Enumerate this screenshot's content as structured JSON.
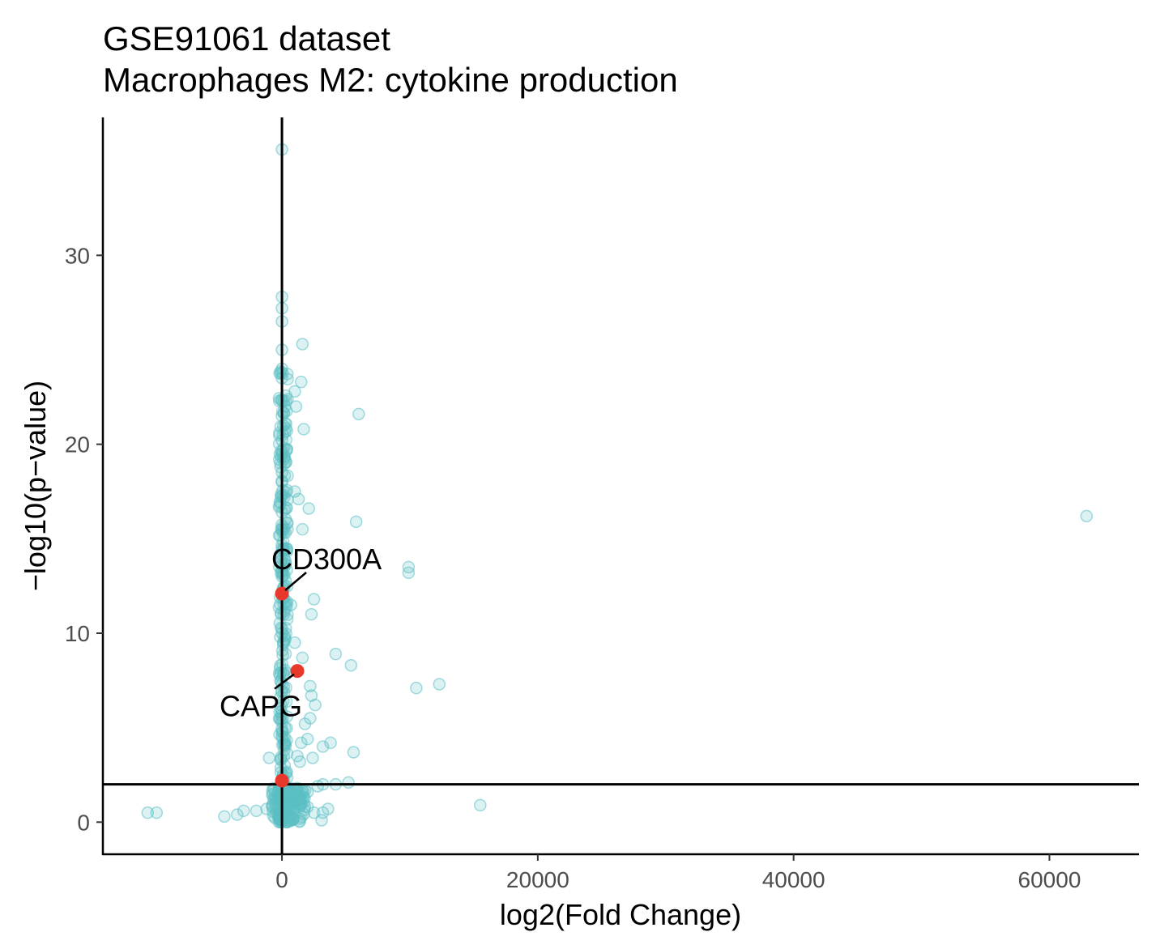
{
  "chart_data": {
    "type": "scatter",
    "title": "GSE91061 dataset",
    "subtitle": "Macrophages M2: cytokine production",
    "xlabel": "log2(Fold Change)",
    "ylabel": "−log10(p−value)",
    "xlim": [
      -14000,
      67000
    ],
    "ylim": [
      -1.7,
      37.3
    ],
    "x_ticks": [
      0,
      20000,
      40000,
      60000
    ],
    "y_ticks": [
      0,
      10,
      20,
      30
    ],
    "x_tick_labels": [
      "0",
      "20000",
      "40000",
      "60000"
    ],
    "y_tick_labels": [
      "0",
      "10",
      "20",
      "30"
    ],
    "grid": false,
    "legend": "none",
    "reference_lines": {
      "vertical_x": 0,
      "horizontal_y": 2
    },
    "colors": {
      "background_points": "#5bbfc4",
      "highlight_points": "#e8382b",
      "axis": "#000000"
    },
    "series": [
      {
        "role": "background",
        "points": [
          {
            "x": 0,
            "y": 35.6
          },
          {
            "x": 0,
            "y": 27.8
          },
          {
            "x": 0,
            "y": 27.2
          },
          {
            "x": 0,
            "y": 26.5
          },
          {
            "x": 1600,
            "y": 25.3
          },
          {
            "x": 0,
            "y": 25.0
          },
          {
            "x": 0,
            "y": 24.0
          },
          {
            "x": 0,
            "y": 23.5
          },
          {
            "x": 1500,
            "y": 23.3
          },
          {
            "x": 1000,
            "y": 22.8
          },
          {
            "x": 0,
            "y": 22.3
          },
          {
            "x": 1100,
            "y": 22.0
          },
          {
            "x": 6000,
            "y": 21.6
          },
          {
            "x": 0,
            "y": 21.5
          },
          {
            "x": 1700,
            "y": 20.8
          },
          {
            "x": 0,
            "y": 20.2
          },
          {
            "x": 0,
            "y": 19.5
          },
          {
            "x": 0,
            "y": 18.5
          },
          {
            "x": 0,
            "y": 18.0
          },
          {
            "x": 1000,
            "y": 17.5
          },
          {
            "x": 1300,
            "y": 17.1
          },
          {
            "x": 2100,
            "y": 16.6
          },
          {
            "x": 0,
            "y": 16.4
          },
          {
            "x": 5800,
            "y": 15.9
          },
          {
            "x": 62900,
            "y": 16.2
          },
          {
            "x": 0,
            "y": 15.5
          },
          {
            "x": 1600,
            "y": 15.5
          },
          {
            "x": 0,
            "y": 14.5
          },
          {
            "x": 9900,
            "y": 13.5
          },
          {
            "x": 9900,
            "y": 13.2
          },
          {
            "x": 0,
            "y": 13.0
          },
          {
            "x": 2500,
            "y": 11.8
          },
          {
            "x": 700,
            "y": 11.5
          },
          {
            "x": 2300,
            "y": 11.0
          },
          {
            "x": 0,
            "y": 10.0
          },
          {
            "x": 1000,
            "y": 9.5
          },
          {
            "x": 4200,
            "y": 8.9
          },
          {
            "x": 1600,
            "y": 8.7
          },
          {
            "x": 5400,
            "y": 8.3
          },
          {
            "x": 12300,
            "y": 7.3
          },
          {
            "x": 10500,
            "y": 7.1
          },
          {
            "x": 2200,
            "y": 7.2
          },
          {
            "x": 2300,
            "y": 6.7
          },
          {
            "x": 2600,
            "y": 6.2
          },
          {
            "x": 2200,
            "y": 5.5
          },
          {
            "x": 1800,
            "y": 5.2
          },
          {
            "x": 2000,
            "y": 4.4
          },
          {
            "x": 1500,
            "y": 4.2
          },
          {
            "x": 3200,
            "y": 4.0
          },
          {
            "x": 3800,
            "y": 4.2
          },
          {
            "x": 5600,
            "y": 3.7
          },
          {
            "x": 1200,
            "y": 3.5
          },
          {
            "x": 2400,
            "y": 3.4
          },
          {
            "x": -1000,
            "y": 3.4
          },
          {
            "x": 1400,
            "y": 3.2
          },
          {
            "x": 3200,
            "y": 2.0
          },
          {
            "x": 4200,
            "y": 2.0
          },
          {
            "x": 5200,
            "y": 2.1
          },
          {
            "x": 15500,
            "y": 0.9
          },
          {
            "x": -10500,
            "y": 0.5
          },
          {
            "x": -9800,
            "y": 0.5
          },
          {
            "x": -4500,
            "y": 0.3
          },
          {
            "x": -3500,
            "y": 0.4
          },
          {
            "x": -3000,
            "y": 0.6
          },
          {
            "x": -2000,
            "y": 0.6
          },
          {
            "x": -1200,
            "y": 0.7
          },
          {
            "x": -500,
            "y": 0.9
          },
          {
            "x": 1500,
            "y": 1.0
          },
          {
            "x": 2000,
            "y": 0.8
          },
          {
            "x": 2500,
            "y": 0.5
          },
          {
            "x": 3200,
            "y": 0.5
          },
          {
            "x": 3600,
            "y": 0.7
          },
          {
            "x": 3100,
            "y": 0.1
          },
          {
            "x": 900,
            "y": 0.2
          },
          {
            "x": 0,
            "y": 1.2
          },
          {
            "x": 0,
            "y": 0.3
          },
          {
            "x": 500,
            "y": 1.5
          },
          {
            "x": 1200,
            "y": 1.8
          },
          {
            "x": 2000,
            "y": 1.6
          },
          {
            "x": 2800,
            "y": 1.9
          }
        ]
      },
      {
        "role": "highlight",
        "points": [
          {
            "x": 0,
            "y": 12.1,
            "label": "CD300A"
          },
          {
            "x": 1200,
            "y": 8.0,
            "label": "CAPG"
          },
          {
            "x": 0,
            "y": 2.2,
            "label": ""
          }
        ]
      }
    ],
    "annotations": [
      {
        "text": "CD300A"
      },
      {
        "text": "CAPG"
      }
    ]
  }
}
